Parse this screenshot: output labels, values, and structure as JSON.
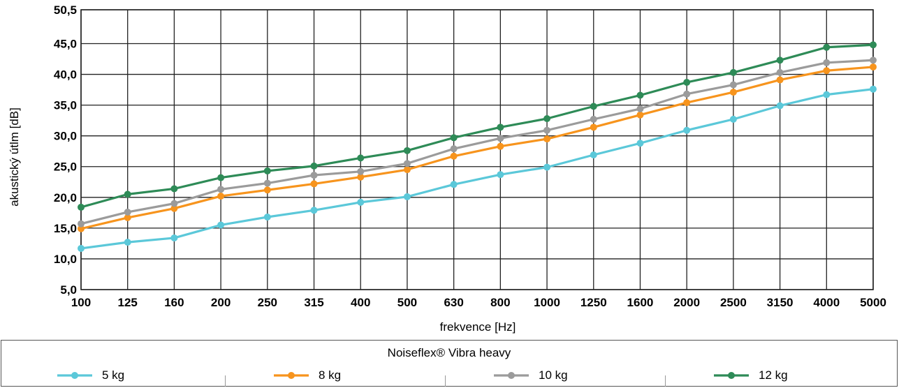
{
  "chart_data": {
    "type": "line",
    "title": "",
    "xlabel": "frekvence [Hz]",
    "ylabel": "akustický útlm [dB]",
    "categories": [
      "100",
      "125",
      "160",
      "200",
      "250",
      "315",
      "400",
      "500",
      "630",
      "800",
      "1000",
      "1250",
      "1600",
      "2000",
      "2500",
      "3150",
      "4000",
      "5000"
    ],
    "ylim": [
      5.0,
      50.5
    ],
    "yticks": [
      "5,0",
      "10,0",
      "15,0",
      "20,0",
      "25,0",
      "30,0",
      "35,0",
      "40,0",
      "45,0",
      "50,5"
    ],
    "ytick_values": [
      5.0,
      10.0,
      15.0,
      20.0,
      25.0,
      30.0,
      35.0,
      40.0,
      45.0,
      50.5
    ],
    "grid": true,
    "legend_title": "Noiseflex® Vibra heavy",
    "legend_position": "bottom",
    "series": [
      {
        "name": "5 kg",
        "color": "#5bc8d9",
        "values": [
          11.7,
          12.7,
          13.4,
          15.5,
          16.8,
          17.9,
          19.2,
          20.1,
          22.1,
          23.7,
          24.9,
          26.9,
          28.8,
          30.9,
          32.7,
          34.9,
          36.7,
          37.6
        ]
      },
      {
        "name": "8 kg",
        "color": "#f7941d",
        "values": [
          14.9,
          16.7,
          18.2,
          20.2,
          21.2,
          22.2,
          23.3,
          24.5,
          26.7,
          28.3,
          29.5,
          31.4,
          33.4,
          35.4,
          37.1,
          39.1,
          40.6,
          41.2
        ]
      },
      {
        "name": "10 kg",
        "color": "#9b9b9b",
        "values": [
          15.7,
          17.6,
          19.0,
          21.3,
          22.3,
          23.6,
          24.2,
          25.5,
          27.9,
          29.6,
          30.9,
          32.7,
          34.4,
          36.8,
          38.3,
          40.3,
          41.9,
          42.3
        ]
      },
      {
        "name": "12 kg",
        "color": "#2e8b57",
        "values": [
          18.4,
          20.5,
          21.4,
          23.2,
          24.3,
          25.1,
          26.4,
          27.6,
          29.7,
          31.4,
          32.8,
          34.8,
          36.6,
          38.7,
          40.3,
          42.3,
          44.4,
          44.8
        ]
      }
    ]
  }
}
